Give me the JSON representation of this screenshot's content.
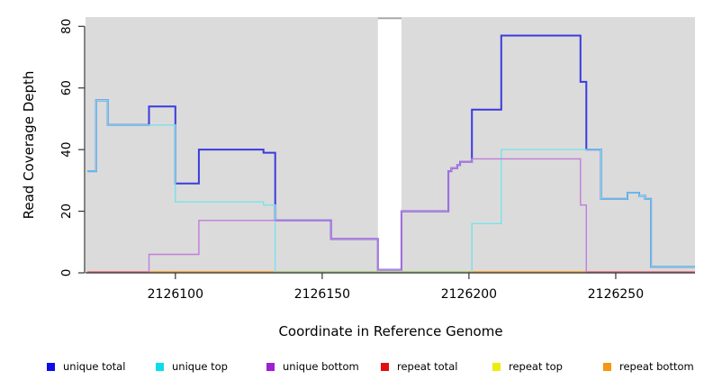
{
  "chart_data": {
    "type": "line",
    "style": "step",
    "title": "",
    "xlabel": "Coordinate in Reference Genome",
    "ylabel": "Read Coverage Depth",
    "xlim": [
      2126070,
      2126277
    ],
    "ylim": [
      0,
      83
    ],
    "x_ticks": [
      2126100,
      2126150,
      2126200,
      2126250
    ],
    "y_ticks": [
      0,
      20,
      40,
      60,
      80
    ],
    "grid": false,
    "background_color": "#DBDBDB",
    "axis_color": "#333333",
    "gap_region": {
      "x0": 2126169,
      "x1": 2126177,
      "fill": "#FFFFFF",
      "top_edge_color": "#A6A6A6"
    },
    "series": [
      {
        "name": "unique total",
        "color": "#3B3BDE",
        "width": 2,
        "paths": [
          [
            [
              2126070,
              33
            ],
            [
              2126073,
              56
            ],
            [
              2126077,
              48
            ],
            [
              2126091,
              54
            ],
            [
              2126100,
              29
            ],
            [
              2126108,
              40
            ],
            [
              2126130,
              39
            ],
            [
              2126134,
              17
            ],
            [
              2126153,
              11
            ],
            [
              2126169,
              1
            ],
            [
              2126177,
              20
            ],
            [
              2126193,
              33
            ],
            [
              2126194,
              34
            ],
            [
              2126196,
              35
            ],
            [
              2126197,
              36
            ],
            [
              2126201,
              53
            ],
            [
              2126211,
              77
            ],
            [
              2126238,
              62
            ],
            [
              2126240,
              40
            ],
            [
              2126245,
              24
            ],
            [
              2126254,
              26
            ],
            [
              2126258,
              25
            ],
            [
              2126260,
              24
            ],
            [
              2126262,
              2
            ],
            [
              2126277,
              2
            ]
          ]
        ]
      },
      {
        "name": "unique top",
        "color": "#79E2EA",
        "width": 1.4,
        "paths": [
          [
            [
              2126070,
              33
            ],
            [
              2126073,
              56
            ],
            [
              2126077,
              48
            ],
            [
              2126100,
              23
            ],
            [
              2126130,
              22
            ],
            [
              2126134,
              0
            ]
          ],
          [
            [
              2126201,
              0
            ],
            [
              2126201,
              16
            ],
            [
              2126211,
              40
            ],
            [
              2126245,
              24
            ],
            [
              2126254,
              26
            ],
            [
              2126258,
              25
            ],
            [
              2126260,
              24
            ],
            [
              2126262,
              2
            ],
            [
              2126277,
              2
            ]
          ]
        ]
      },
      {
        "name": "unique bottom",
        "color": "#C07EDB",
        "width": 1.4,
        "paths": [
          [
            [
              2126091,
              0
            ],
            [
              2126091,
              6
            ],
            [
              2126108,
              17
            ],
            [
              2126153,
              11
            ],
            [
              2126169,
              1
            ],
            [
              2126177,
              20
            ],
            [
              2126193,
              33
            ],
            [
              2126194,
              34
            ],
            [
              2126196,
              35
            ],
            [
              2126197,
              36
            ],
            [
              2126201,
              37
            ],
            [
              2126238,
              22
            ],
            [
              2126240,
              0
            ]
          ]
        ]
      },
      {
        "name": "repeat total",
        "color": "#E01010",
        "width": 1.2,
        "paths": [
          [
            [
              2126070,
              0
            ],
            [
              2126277,
              0
            ]
          ]
        ]
      },
      {
        "name": "repeat top",
        "color": "#ECEC10",
        "width": 1.2,
        "paths": [
          [
            [
              2126070,
              0
            ],
            [
              2126277,
              0
            ]
          ]
        ]
      },
      {
        "name": "repeat bottom",
        "color": "#F5970F",
        "width": 1.2,
        "paths": [
          [
            [
              2126070,
              0
            ],
            [
              2126277,
              0
            ]
          ]
        ]
      }
    ],
    "baseline_segments": [
      {
        "x0": 2126070,
        "x1": 2126091,
        "color": "#E0699E"
      },
      {
        "x0": 2126091,
        "x1": 2126134,
        "color": "#FFA41E"
      },
      {
        "x0": 2126134,
        "x1": 2126200,
        "color": "#92DA92"
      },
      {
        "x0": 2126200,
        "x1": 2126240,
        "color": "#FFA41E"
      },
      {
        "x0": 2126240,
        "x1": 2126277,
        "color": "#E0699E"
      }
    ],
    "legend_position": "bottom",
    "legend": [
      {
        "label": "unique total",
        "color": "#0D0DE8"
      },
      {
        "label": "unique top",
        "color": "#0DDDE8"
      },
      {
        "label": "unique bottom",
        "color": "#9E1ED6"
      },
      {
        "label": "repeat total",
        "color": "#E01010"
      },
      {
        "label": "repeat top",
        "color": "#ECEC10"
      },
      {
        "label": "repeat bottom",
        "color": "#F5970F"
      }
    ]
  },
  "labels": {
    "y_axis_title": "Read Coverage Depth",
    "x_axis_title": "Coordinate in Reference Genome"
  }
}
